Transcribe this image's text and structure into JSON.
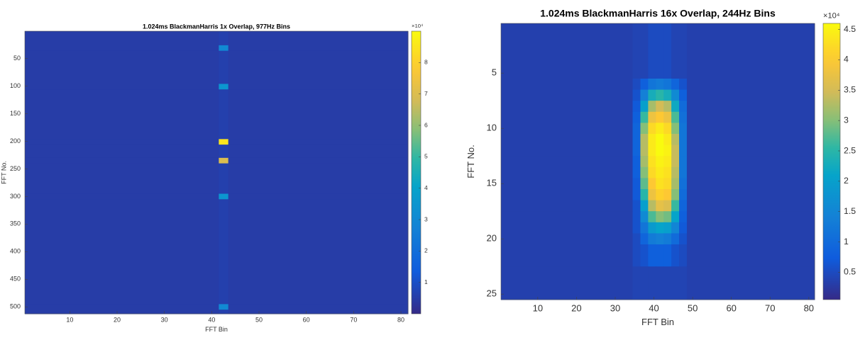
{
  "chart_data": [
    {
      "type": "heatmap",
      "title": "1.024ms BlackmanHarris 1x Overlap, 977Hz Bins",
      "x_label": "FFT Bin",
      "y_label": "FFT No.",
      "colormap": "parula",
      "xlim": [
        0.5,
        81.5
      ],
      "xticks": [
        10,
        20,
        30,
        40,
        50,
        60,
        70,
        80
      ],
      "ylim": [
        0.5,
        512.5
      ],
      "yticks": [
        50,
        100,
        150,
        200,
        250,
        300,
        350,
        400,
        450,
        500
      ],
      "y_reversed": true,
      "xedges": [
        0.5,
        41.5,
        43.5,
        81.5
      ],
      "yedges": [
        0.5,
        26,
        36,
        96,
        106,
        196,
        206,
        230,
        240,
        295,
        305,
        495,
        505,
        512.5
      ],
      "z": [
        [
          0.5,
          0.6,
          0.5
        ],
        [
          0.5,
          3,
          0.5
        ],
        [
          0.5,
          0.6,
          0.5
        ],
        [
          0.5,
          3.5,
          0.5
        ],
        [
          0.5,
          0.6,
          0.5
        ],
        [
          0.5,
          8.5,
          0.5
        ],
        [
          0.5,
          0.6,
          0.5
        ],
        [
          0.5,
          7,
          0.5
        ],
        [
          0.5,
          0.6,
          0.5
        ],
        [
          0.5,
          3.5,
          0.5
        ],
        [
          0.5,
          0.6,
          0.5
        ],
        [
          0.5,
          3,
          0.5
        ],
        [
          0.5,
          0.6,
          0.5
        ]
      ],
      "clim": [
        0,
        9
      ],
      "cticks": [
        1,
        2,
        3,
        4,
        5,
        6,
        7,
        8
      ],
      "clabel": "×10⁴"
    },
    {
      "type": "heatmap",
      "title": "1.024ms BlackmanHarris 16x Overlap, 244Hz Bins",
      "x_label": "FFT Bin",
      "y_label": "FFT No.",
      "colormap": "parula",
      "xlim": [
        0.5,
        81.5
      ],
      "xticks": [
        10,
        20,
        30,
        40,
        50,
        60,
        70,
        80
      ],
      "ylim": [
        0.5,
        25.5
      ],
      "yticks": [
        5,
        10,
        15,
        20,
        25
      ],
      "y_reversed": true,
      "xedges": [
        0.5,
        34.5,
        36.5,
        38.5,
        40.5,
        42.5,
        44.5,
        46.5,
        48.5,
        81.5
      ],
      "yedges": [
        0.5,
        5.5,
        6.5,
        7.5,
        8.5,
        9.5,
        10.5,
        11.5,
        12.5,
        13.5,
        14.5,
        15.5,
        16.5,
        17.5,
        18.5,
        19.5,
        20.5,
        22.5,
        25.5
      ],
      "z": [
        [
          0.35,
          0.4,
          0.4,
          0.5,
          0.5,
          0.5,
          0.4,
          0.4,
          0.35
        ],
        [
          0.35,
          0.5,
          0.8,
          1.2,
          1.3,
          1.2,
          0.9,
          0.6,
          0.35
        ],
        [
          0.35,
          0.6,
          1.4,
          2.3,
          2.5,
          2.3,
          1.6,
          0.8,
          0.35
        ],
        [
          0.35,
          0.7,
          2.0,
          3.2,
          3.5,
          3.3,
          2.2,
          1.0,
          0.35
        ],
        [
          0.35,
          0.8,
          2.6,
          3.8,
          4.0,
          3.8,
          2.7,
          1.1,
          0.35
        ],
        [
          0.35,
          0.9,
          3.0,
          4.2,
          4.4,
          4.2,
          3.0,
          1.2,
          0.35
        ],
        [
          0.35,
          0.9,
          3.3,
          4.4,
          4.6,
          4.4,
          3.3,
          1.2,
          0.35
        ],
        [
          0.35,
          0.9,
          3.3,
          4.4,
          4.6,
          4.5,
          3.4,
          1.2,
          0.35
        ],
        [
          0.35,
          0.8,
          3.2,
          4.3,
          4.5,
          4.4,
          3.4,
          1.2,
          0.35
        ],
        [
          0.35,
          0.8,
          3.0,
          4.2,
          4.4,
          4.3,
          3.3,
          1.2,
          0.35
        ],
        [
          0.35,
          0.7,
          2.8,
          4.0,
          4.3,
          4.2,
          3.2,
          1.1,
          0.35
        ],
        [
          0.35,
          0.7,
          2.5,
          3.8,
          4.1,
          4.0,
          3.0,
          1.0,
          0.35
        ],
        [
          0.35,
          0.6,
          2.0,
          3.3,
          3.7,
          3.6,
          2.6,
          0.9,
          0.35
        ],
        [
          0.35,
          0.6,
          1.6,
          2.7,
          3.0,
          2.9,
          2.1,
          0.8,
          0.35
        ],
        [
          0.35,
          0.6,
          1.2,
          1.9,
          2.1,
          2.0,
          1.5,
          0.7,
          0.35
        ],
        [
          0.35,
          0.5,
          0.9,
          1.3,
          1.4,
          1.3,
          1.0,
          0.6,
          0.35
        ],
        [
          0.35,
          0.5,
          0.6,
          0.8,
          0.8,
          0.8,
          0.6,
          0.5,
          0.35
        ],
        [
          0.35,
          0.4,
          0.4,
          0.4,
          0.4,
          0.4,
          0.4,
          0.4,
          0.35
        ]
      ],
      "clim": [
        0.05,
        4.6
      ],
      "cticks": [
        0.5,
        1,
        1.5,
        2,
        2.5,
        3,
        3.5,
        4,
        4.5
      ],
      "clabel": "×10⁴"
    }
  ]
}
